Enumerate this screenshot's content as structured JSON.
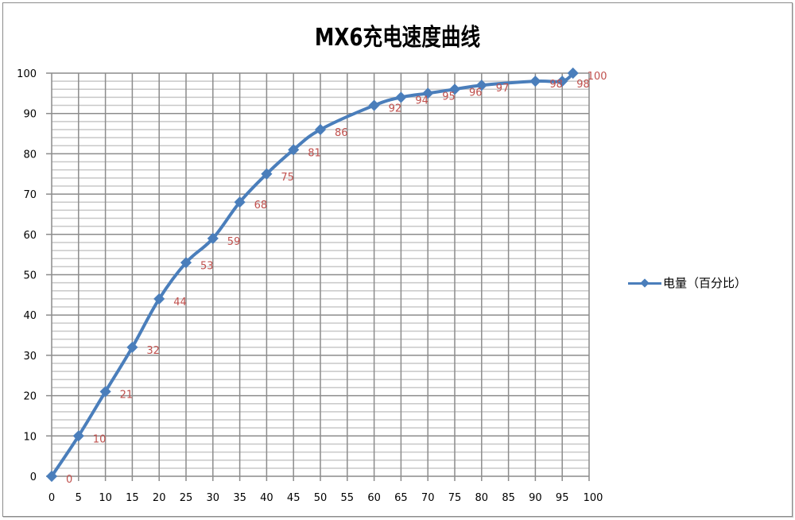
{
  "chart_data": {
    "type": "line",
    "title": "MX6充电速度曲线",
    "xlabel": "",
    "ylabel": "",
    "xlim": [
      0,
      100
    ],
    "ylim": [
      0,
      100
    ],
    "x_ticks": [
      0,
      5,
      10,
      15,
      20,
      25,
      30,
      35,
      40,
      45,
      50,
      55,
      60,
      65,
      70,
      75,
      80,
      85,
      90,
      95,
      100
    ],
    "y_ticks": [
      0,
      10,
      20,
      30,
      40,
      50,
      60,
      70,
      80,
      90,
      100
    ],
    "grid": {
      "major": true,
      "minor_y_step": 2
    },
    "legend": {
      "position": "right",
      "entries": [
        "电量（百分比）"
      ]
    },
    "series": [
      {
        "name": "电量（百分比）",
        "color": "#4a7ebb",
        "label_color": "#c0504d",
        "x": [
          0,
          5,
          10,
          15,
          20,
          25,
          30,
          35,
          40,
          45,
          50,
          60,
          65,
          70,
          75,
          80,
          90,
          95,
          97
        ],
        "values": [
          0,
          10,
          21,
          32,
          44,
          53,
          59,
          68,
          75,
          81,
          86,
          92,
          94,
          95,
          96,
          97,
          98,
          98,
          100
        ]
      }
    ]
  },
  "legend_label": "电量（百分比）"
}
